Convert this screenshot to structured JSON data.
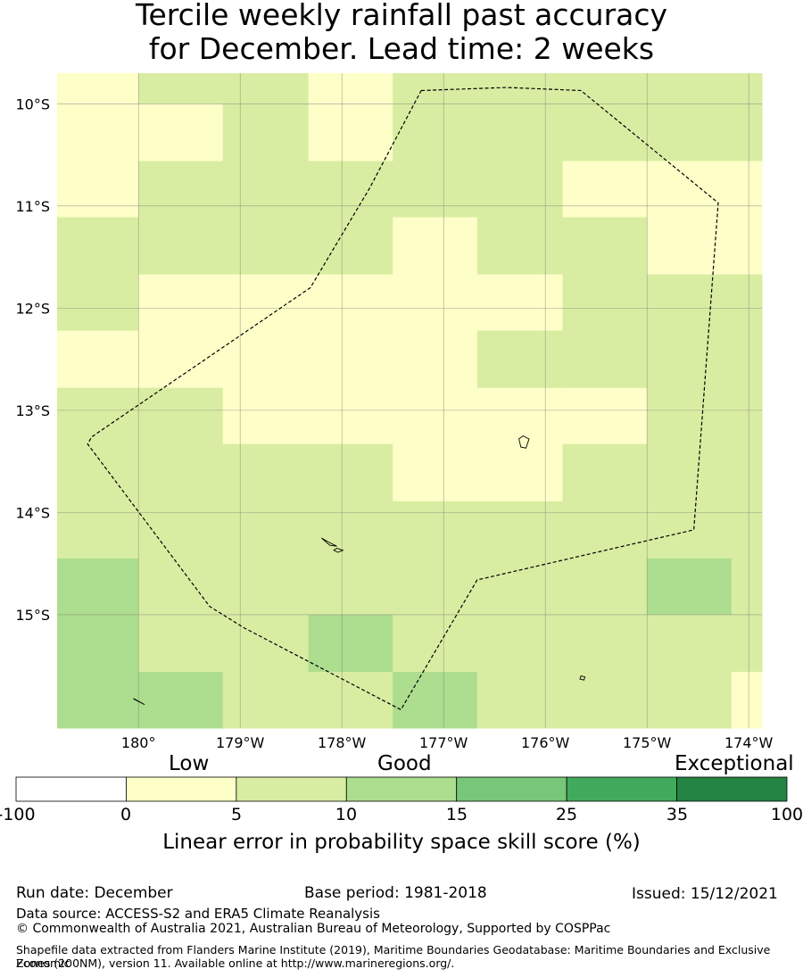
{
  "title_lines": [
    "Tercile weekly rainfall past accuracy",
    "for December. Lead time: 2 weeks"
  ],
  "map": {
    "lon_range": [
      -180.8,
      -173.87
    ],
    "lat_range": [
      -16.11,
      -9.7
    ],
    "lon_ticks": [
      {
        "lon": -180,
        "label": "180°"
      },
      {
        "lon": -179,
        "label": "179°W"
      },
      {
        "lon": -178,
        "label": "178°W"
      },
      {
        "lon": -177,
        "label": "177°W"
      },
      {
        "lon": -176,
        "label": "176°W"
      },
      {
        "lon": -175,
        "label": "175°W"
      },
      {
        "lon": -174,
        "label": "174°W"
      }
    ],
    "lat_ticks": [
      {
        "lat": -10,
        "label": "10°S"
      },
      {
        "lat": -11,
        "label": "11°S"
      },
      {
        "lat": -12,
        "label": "12°S"
      },
      {
        "lat": -13,
        "label": "13°S"
      },
      {
        "lat": -14,
        "label": "14°S"
      },
      {
        "lat": -15,
        "label": "15°S"
      }
    ],
    "grid_lon_edges": [
      -180.8,
      -180,
      -179.17,
      -178.33,
      -177.5,
      -176.67,
      -175.83,
      -175,
      -174.17,
      -173.87
    ],
    "grid_lat_edges": [
      -9.7,
      -10.0,
      -10.56,
      -11.11,
      -11.67,
      -12.22,
      -12.78,
      -13.33,
      -13.89,
      -14.45,
      -15.0,
      -15.56,
      -16.11
    ],
    "category_colors": [
      "#fefec8",
      "#d9eda2",
      "#addd8e"
    ],
    "grid_categories": [
      [
        0,
        1,
        1,
        0,
        1,
        1,
        1,
        1,
        1
      ],
      [
        0,
        0,
        1,
        0,
        1,
        1,
        1,
        1,
        1
      ],
      [
        0,
        1,
        1,
        1,
        1,
        1,
        0,
        0,
        0
      ],
      [
        1,
        1,
        1,
        1,
        0,
        1,
        1,
        0,
        0
      ],
      [
        1,
        0,
        0,
        0,
        0,
        0,
        1,
        1,
        1
      ],
      [
        0,
        0,
        0,
        0,
        0,
        1,
        1,
        1,
        1
      ],
      [
        1,
        1,
        0,
        0,
        0,
        0,
        0,
        1,
        1
      ],
      [
        1,
        1,
        1,
        1,
        0,
        0,
        1,
        1,
        1
      ],
      [
        1,
        1,
        1,
        1,
        1,
        1,
        1,
        1,
        1
      ],
      [
        2,
        1,
        1,
        1,
        1,
        1,
        1,
        2,
        1
      ],
      [
        2,
        1,
        1,
        2,
        1,
        1,
        1,
        1,
        1
      ],
      [
        2,
        2,
        1,
        1,
        2,
        1,
        1,
        1,
        0
      ]
    ],
    "eez_boundary": [
      [
        -177.22,
        -9.87
      ],
      [
        -176.38,
        -9.84
      ],
      [
        -175.65,
        -9.87
      ],
      [
        -174.3,
        -10.97
      ],
      [
        -174.54,
        -14.17
      ],
      [
        -176.67,
        -14.66
      ],
      [
        -177.42,
        -15.93
      ],
      [
        -178.96,
        -15.13
      ],
      [
        -179.3,
        -14.92
      ],
      [
        -180.5,
        -13.33
      ],
      [
        -180.46,
        -13.26
      ],
      [
        -178.31,
        -11.8
      ],
      [
        -177.73,
        -10.83
      ],
      [
        -177.22,
        -9.87
      ]
    ],
    "islands": [
      [
        [
          -176.22,
          -13.25
        ],
        [
          -176.16,
          -13.28
        ],
        [
          -176.19,
          -13.37
        ],
        [
          -176.24,
          -13.36
        ],
        [
          -176.26,
          -13.28
        ]
      ],
      [
        [
          -178.2,
          -14.25
        ],
        [
          -178.12,
          -14.32
        ],
        [
          -178.05,
          -14.33
        ],
        [
          -178.13,
          -14.29
        ]
      ],
      [
        [
          -178.05,
          -14.35
        ],
        [
          -177.99,
          -14.37
        ],
        [
          -178.04,
          -14.39
        ],
        [
          -178.08,
          -14.37
        ]
      ],
      [
        [
          -175.65,
          -15.6
        ],
        [
          -175.61,
          -15.61
        ],
        [
          -175.62,
          -15.64
        ],
        [
          -175.66,
          -15.63
        ]
      ],
      [
        [
          -180.05,
          -15.82
        ],
        [
          -179.94,
          -15.88
        ],
        [
          -179.96,
          -15.87
        ],
        [
          -180.04,
          -15.83
        ]
      ]
    ]
  },
  "colorbar": {
    "category_labels": {
      "low": "Low",
      "good": "Good",
      "exceptional": "Exceptional"
    },
    "bins": [
      {
        "from": -100,
        "to": 0,
        "color": "#ffffff"
      },
      {
        "from": 0,
        "to": 5,
        "color": "#fefec8"
      },
      {
        "from": 5,
        "to": 10,
        "color": "#d9eda2"
      },
      {
        "from": 10,
        "to": 15,
        "color": "#addd8e"
      },
      {
        "from": 15,
        "to": 25,
        "color": "#78c679"
      },
      {
        "from": 25,
        "to": 35,
        "color": "#41ab5d"
      },
      {
        "from": 35,
        "to": 100,
        "color": "#238443"
      }
    ],
    "tick_labels": [
      "-100",
      "0",
      "5",
      "10",
      "15",
      "25",
      "35",
      "100"
    ],
    "axis_label": "Linear error in probability space skill score (%)"
  },
  "footer": {
    "run_date": "Run date: December",
    "base_period": "Base period: 1981-2018",
    "issued": "Issued: 15/12/2021",
    "data_source": "Data source: ACCESS-S2 and ERA5 Climate Reanalysis",
    "copyright": "© Commonwealth of Australia 2021, Australian Bureau of Meteorology, Supported by COSPPac",
    "shapefile_line1": "Shapefile data extracted from Flanders Marine Institute (2019), Maritime Boundaries Geodatabase: Maritime Boundaries and Exclusive Economic",
    "shapefile_line2": "Zones (200NM), version 11. Available online at http://www.marineregions.org/."
  }
}
